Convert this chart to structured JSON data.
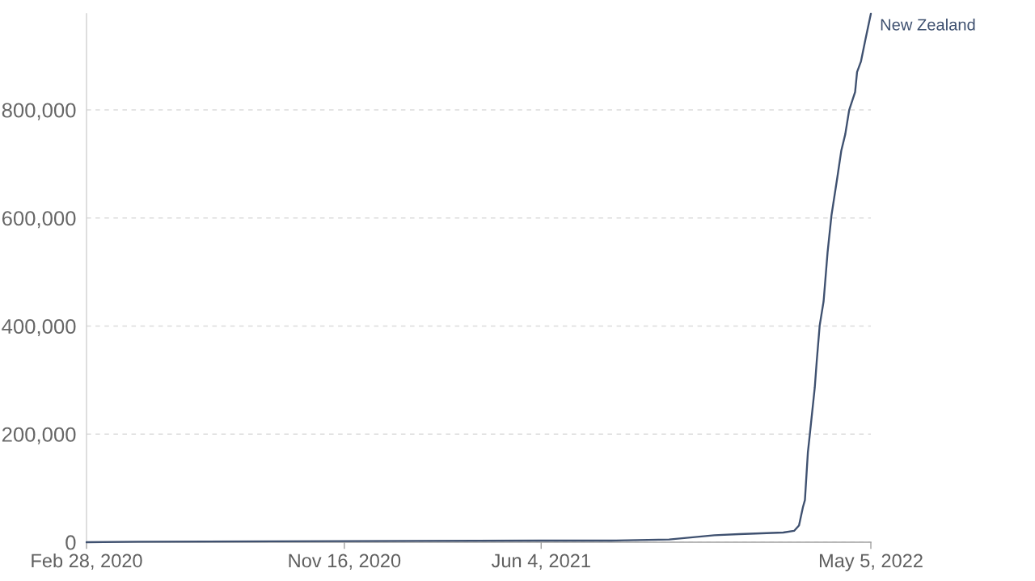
{
  "chart_data": {
    "type": "line",
    "x": [
      "2020-02-28",
      "2020-04-20",
      "2020-11-16",
      "2021-06-04",
      "2021-08-15",
      "2021-10-12",
      "2021-11-27",
      "2021-12-22",
      "2022-02-05",
      "2022-02-16",
      "2022-02-21",
      "2022-02-25",
      "2022-02-27",
      "2022-03-02",
      "2022-03-04",
      "2022-03-09",
      "2022-03-11",
      "2022-03-14",
      "2022-03-18",
      "2022-03-22",
      "2022-03-26",
      "2022-04-01",
      "2022-04-05",
      "2022-04-09",
      "2022-04-13",
      "2022-04-19",
      "2022-04-21",
      "2022-04-25",
      "2022-04-29",
      "2022-05-05"
    ],
    "series": [
      {
        "name": "New Zealand",
        "color": "#3f5170",
        "values": [
          0,
          1000,
          2000,
          3000,
          3000,
          5000,
          13000,
          15000,
          18000,
          21000,
          31000,
          65000,
          78000,
          166000,
          200000,
          286000,
          335000,
          401000,
          446000,
          536000,
          605000,
          676000,
          725000,
          755000,
          800000,
          833000,
          870000,
          890000,
          926000,
          978000
        ]
      }
    ],
    "xlim": [
      "2020-02-28",
      "2022-05-05"
    ],
    "xticks": [
      {
        "value": "2020-02-28",
        "label": "Feb 28, 2020"
      },
      {
        "value": "2020-11-16",
        "label": "Nov 16, 2020"
      },
      {
        "value": "2021-06-04",
        "label": "Jun 4, 2021"
      },
      {
        "value": "2022-05-05",
        "label": "May 5, 2022"
      }
    ],
    "ylim": [
      0,
      978000
    ],
    "yticks": [
      0,
      {
        "value": 200000,
        "label": "200,000"
      },
      {
        "value": 400000,
        "label": "400,000"
      },
      {
        "value": 600000,
        "label": "600,000"
      },
      {
        "value": 800000,
        "label": "800,000"
      }
    ],
    "grid": "y",
    "line_style": "solid"
  }
}
